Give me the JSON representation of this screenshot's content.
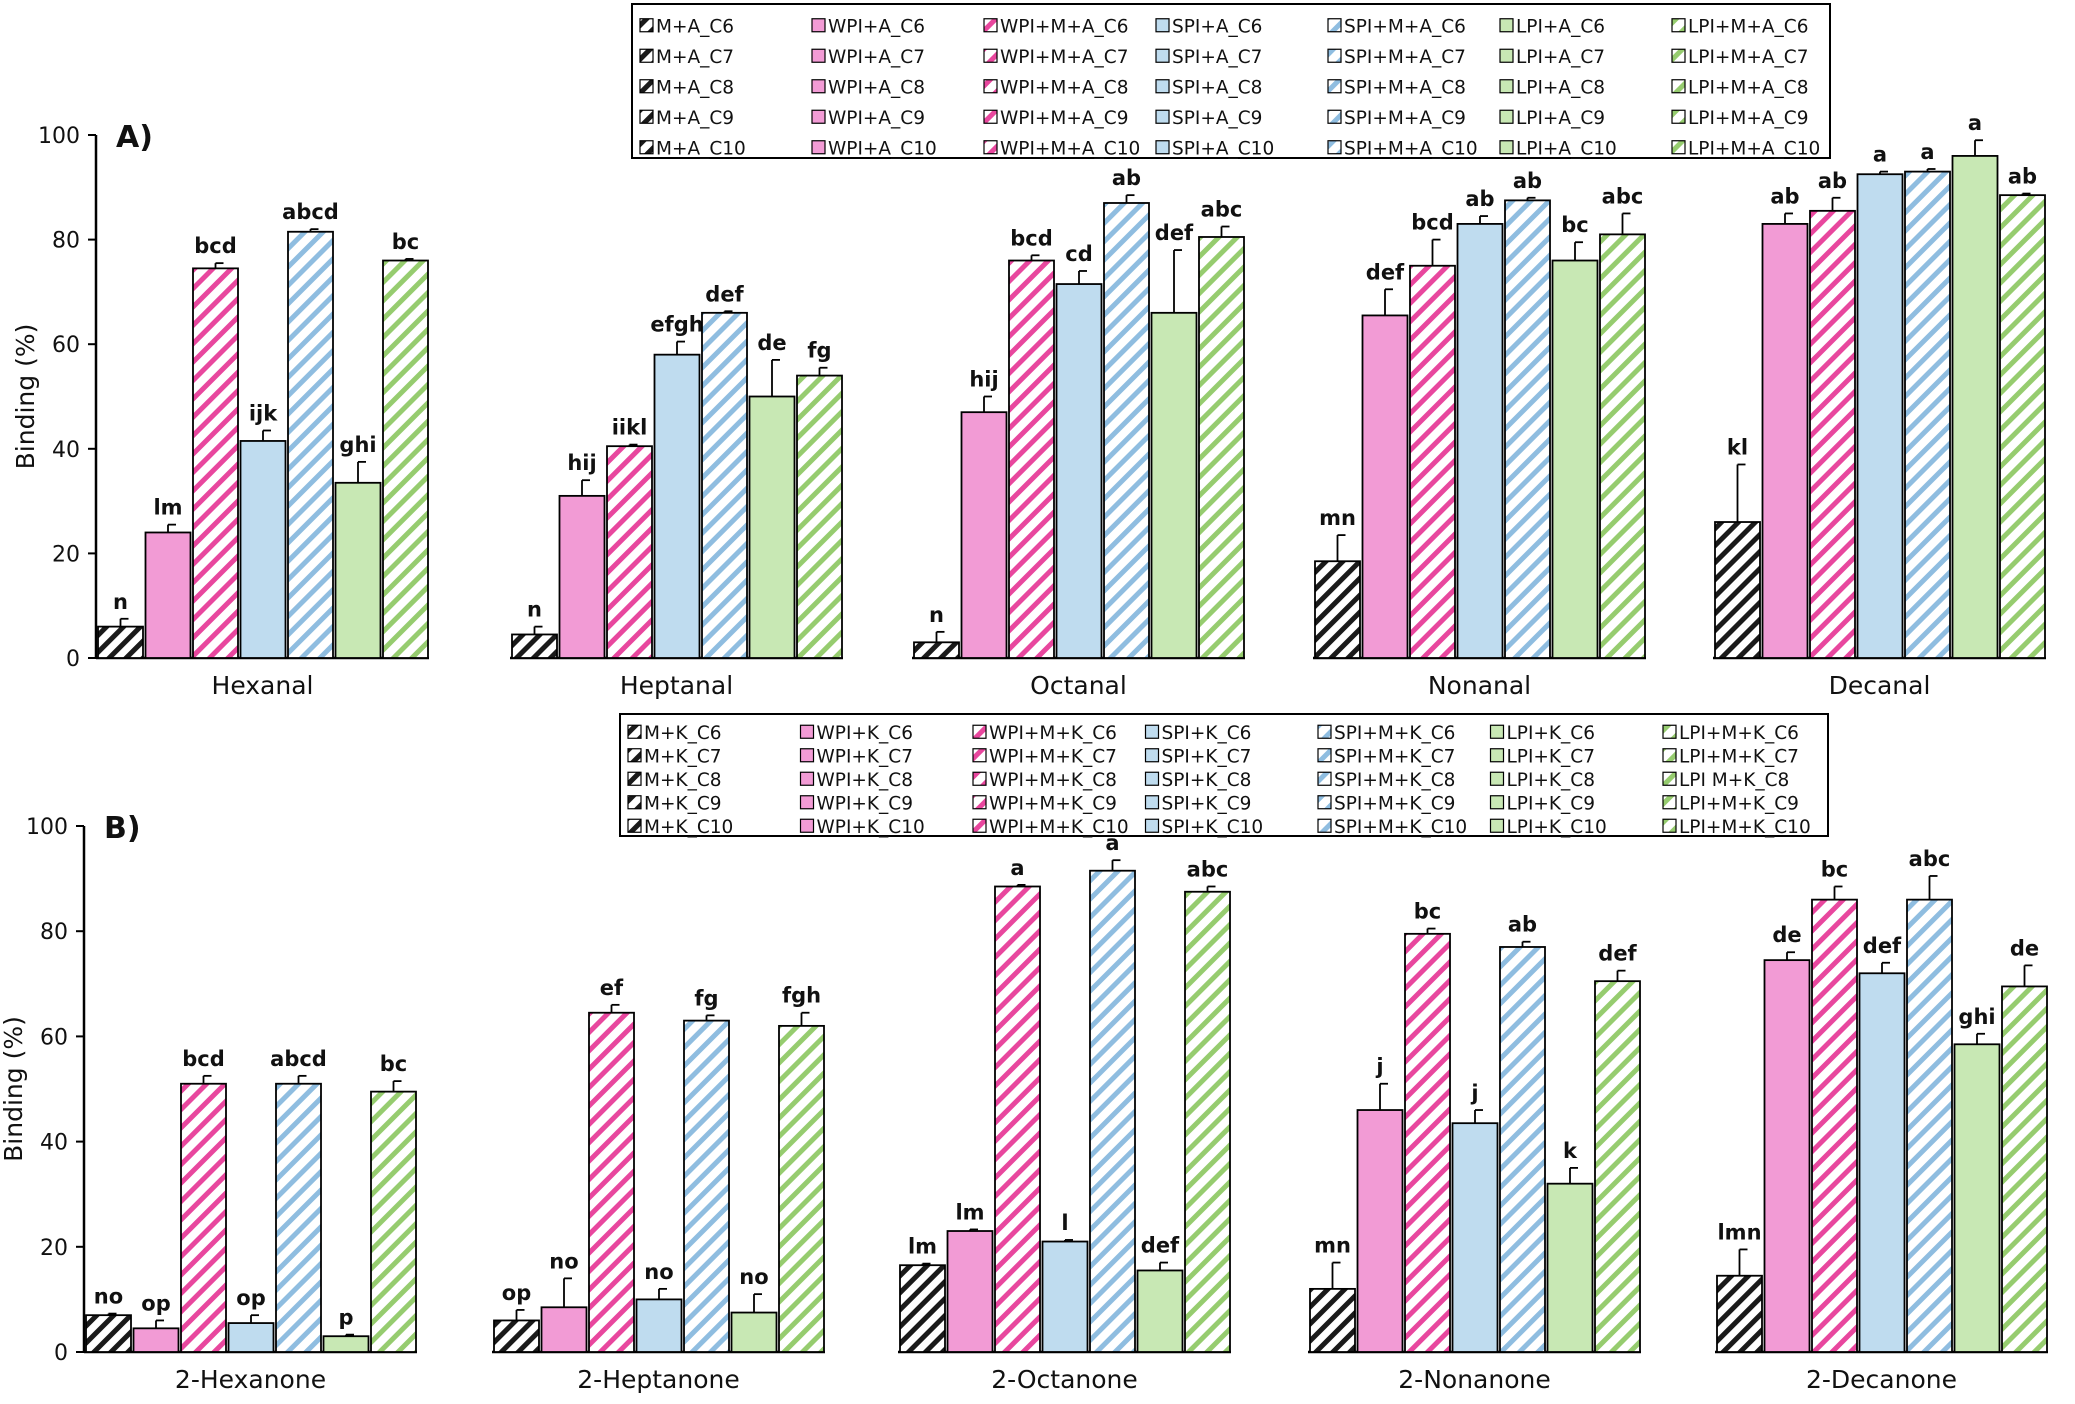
{
  "colors": {
    "milk": "#1a1a1a",
    "wpi": "#f29bd5",
    "wpi_stripe": "#e8479e",
    "spi": "#bfdcef",
    "spi_stripe": "#8fbde0",
    "lpi": "#c8e8b4",
    "lpi_stripe": "#96cc6f"
  },
  "chart_data": [
    {
      "type": "bar",
      "panel_label": "A)",
      "ylabel": "Binding (%)",
      "ylim": [
        0,
        100
      ],
      "yticks": [
        "0",
        "20",
        "40",
        "60",
        "80",
        "100"
      ],
      "grid": false,
      "legend_position": "top-right",
      "legend": [
        [
          "M+A_C6",
          "WPI+A_C6",
          "WPI+M+A_C6",
          "SPI+A_C6",
          "SPI+M+A_C6",
          "LPI+A_C6",
          "LPI+M+A_C6"
        ],
        [
          "M+A_C7",
          "WPI+A_C7",
          "WPI+M+A_C7",
          "SPI+A_C7",
          "SPI+M+A_C7",
          "LPI+A_C7",
          "LPI+M+A_C7"
        ],
        [
          "M+A_C8",
          "WPI+A_C8",
          "WPI+M+A_C8",
          "SPI+A_C8",
          "SPI+M+A_C8",
          "LPI+A_C8",
          "LPI+M+A_C8"
        ],
        [
          "M+A_C9",
          "WPI+A_C9",
          "WPI+M+A_C9",
          "SPI+A_C9",
          "SPI+M+A_C9",
          "LPI+A_C9",
          "LPI+M+A_C9"
        ],
        [
          "M+A_C10",
          "WPI+A_C10",
          "WPI+M+A_C10",
          "SPI+A_C10",
          "SPI+M+A_C10",
          "LPI+A_C10",
          "LPI+M+A_C10"
        ]
      ],
      "groups": [
        {
          "name": "Hexanal",
          "values": [
            6,
            24,
            74.5,
            41.5,
            81.5,
            33.5,
            76
          ],
          "errors": [
            1.5,
            1.5,
            1,
            2,
            0.5,
            4,
            0.3
          ],
          "letters": [
            "n",
            "lm",
            "bcd",
            "ijk",
            "abcd",
            "ghi",
            "bc"
          ]
        },
        {
          "name": "Heptanal",
          "values": [
            4.5,
            31,
            40.5,
            58,
            66,
            50,
            54
          ],
          "errors": [
            1.5,
            3,
            0.3,
            2.5,
            0.3,
            7,
            1.5
          ],
          "letters": [
            "n",
            "hij",
            "iikl",
            "efgh",
            "def",
            "de",
            "fg"
          ]
        },
        {
          "name": "Octanal",
          "values": [
            3,
            47,
            76,
            71.5,
            87,
            66,
            80.5
          ],
          "errors": [
            2,
            3,
            1,
            2.5,
            1.5,
            12,
            2
          ]
        },
        {
          "name": "Nonanal",
          "values": [
            18.5,
            65.5,
            75,
            83,
            87.5,
            76,
            81
          ],
          "errors": [
            5,
            5,
            5,
            1.5,
            0.5,
            3.5,
            4
          ]
        },
        {
          "name": "Decanal",
          "values": [
            26,
            83,
            85.5,
            92.5,
            93,
            96,
            88.5
          ],
          "errors": [
            11,
            2,
            2.5,
            0.5,
            0.5,
            3,
            0.3
          ]
        }
      ],
      "letters_octanal": [
        "n",
        "hij",
        "bcd",
        "cd",
        "ab",
        "def",
        "abc"
      ],
      "letters_nonanal": [
        "mn",
        "def",
        "bcd",
        "ab",
        "ab",
        "bc",
        "abc"
      ],
      "letters_decanal": [
        "kl",
        "ab",
        "ab",
        "a",
        "a",
        "a",
        "ab"
      ]
    },
    {
      "type": "bar",
      "panel_label": "B)",
      "ylabel": "Binding (%)",
      "ylim": [
        0,
        100
      ],
      "yticks": [
        "0",
        "20",
        "40",
        "60",
        "80",
        "100"
      ],
      "grid": false,
      "legend_position": "top-right",
      "legend": [
        [
          "M+K_C6",
          "WPI+K_C6",
          "WPI+M+K_C6",
          "SPI+K_C6",
          "SPI+M+K_C6",
          "LPI+K_C6",
          "LPI+M+K_C6"
        ],
        [
          "M+K_C7",
          "WPI+K_C7",
          "WPI+M+K_C7",
          "SPI+K_C7",
          "SPI+M+K_C7",
          "LPI+K_C7",
          "LPI+M+K_C7"
        ],
        [
          "M+K_C8",
          "WPI+K_C8",
          "WPI+M+K_C8",
          "SPI+K_C8",
          "SPI+M+K_C8",
          "LPI+K_C8",
          "LPI M+K_C8"
        ],
        [
          "M+K_C9",
          "WPI+K_C9",
          "WPI+M+K_C9",
          "SPI+K_C9",
          "SPI+M+K_C9",
          "LPI+K_C9",
          "LPI+M+K_C9"
        ],
        [
          "M+K_C10",
          "WPI+K_C10",
          "WPI+M+K_C10",
          "SPI+K_C10",
          "SPI+M+K_C10",
          "LPI+K_C10",
          "LPI+M+K_C10"
        ]
      ],
      "groups": [
        {
          "name": "2-Hexanone",
          "values": [
            7,
            4.5,
            51,
            5.5,
            51,
            3,
            49.5
          ],
          "errors": [
            0.3,
            1.5,
            1.5,
            1.5,
            1.5,
            0.3,
            2
          ],
          "letters": [
            "no",
            "op",
            "bcd",
            "op",
            "abcd",
            "p",
            "bc"
          ]
        },
        {
          "name": "2-Heptanone",
          "values": [
            6,
            8.5,
            64.5,
            10,
            63,
            7.5,
            62
          ],
          "errors": [
            2,
            5.5,
            1.5,
            2,
            1,
            3.5,
            2.5
          ],
          "letters": [
            "op",
            "no",
            "ef",
            "no",
            "fg",
            "no",
            "fgh"
          ]
        },
        {
          "name": "2-Octanone",
          "values": [
            16.5,
            23,
            88.5,
            21,
            91.5,
            15.5,
            87.5
          ],
          "errors": [
            0.3,
            0.3,
            0.3,
            0.3,
            2,
            1.5,
            1
          ],
          "letters": [
            "lm",
            "lm",
            "a",
            "l",
            "a",
            "def",
            "abc"
          ]
        },
        {
          "name": "2-Nonanone",
          "values": [
            12,
            46,
            79.5,
            43.5,
            77,
            32,
            70.5
          ],
          "errors": [
            5,
            5,
            1,
            2.5,
            1,
            3,
            2
          ],
          "letters": [
            "mn",
            "j",
            "bc",
            "j",
            "ab",
            "k",
            "def"
          ]
        },
        {
          "name": "2-Decanone",
          "values": [
            14.5,
            74.5,
            86,
            72,
            86,
            58.5,
            69.5
          ],
          "errors": [
            5,
            1.5,
            2.5,
            2,
            4.5,
            2,
            4
          ],
          "letters": [
            "lmn",
            "de",
            "bc",
            "def",
            "abc",
            "ghi",
            "de"
          ]
        }
      ]
    }
  ]
}
